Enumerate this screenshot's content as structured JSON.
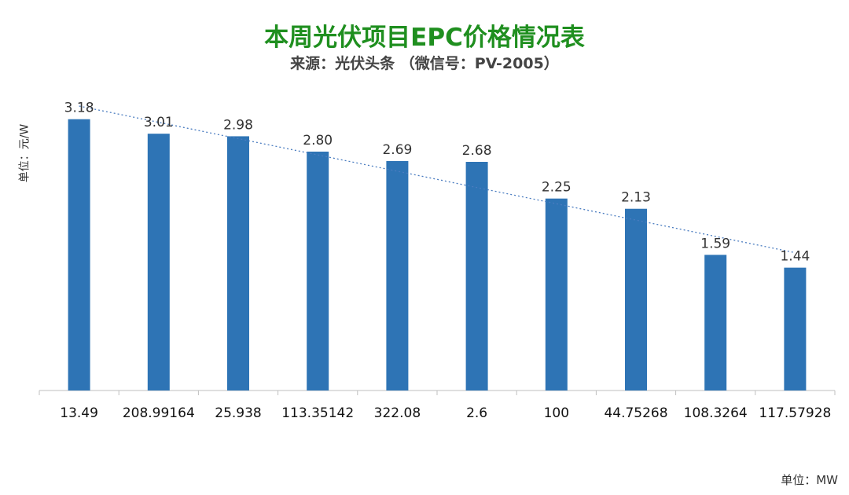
{
  "header": {
    "title": "本周光伏项目EPC价格情况表",
    "subtitle": "来源：光伏头条 （微信号：PV-2005）"
  },
  "footer": {
    "unit_note": "单位：MW"
  },
  "colors": {
    "bar": "#2e74b5",
    "trendline": "#4a7cc0",
    "title": "#1f8f1f",
    "axis": "#bfbfbf"
  },
  "chart_data": {
    "type": "bar",
    "title": "本周光伏项目EPC价格情况表",
    "subtitle": "来源：光伏头条 （微信号：PV-2005）",
    "ylabel": "单位：元/W",
    "xlabel": "单位：MW",
    "categories": [
      "13.49",
      "208.99164",
      "25.938",
      "113.35142",
      "322.08",
      "2.6",
      "100",
      "44.75268",
      "108.3264",
      "117.57928"
    ],
    "values": [
      3.18,
      3.01,
      2.98,
      2.8,
      2.69,
      2.68,
      2.25,
      2.13,
      1.59,
      1.44
    ],
    "value_labels": [
      "3.18",
      "3.01",
      "2.98",
      "2.80",
      "2.69",
      "2.68",
      "2.25",
      "2.13",
      "1.59",
      "1.44"
    ],
    "trendline": "linear, dotted",
    "ylim": [
      0,
      3.38
    ],
    "grid": false,
    "legend": "none",
    "yaxis_visible": false
  }
}
